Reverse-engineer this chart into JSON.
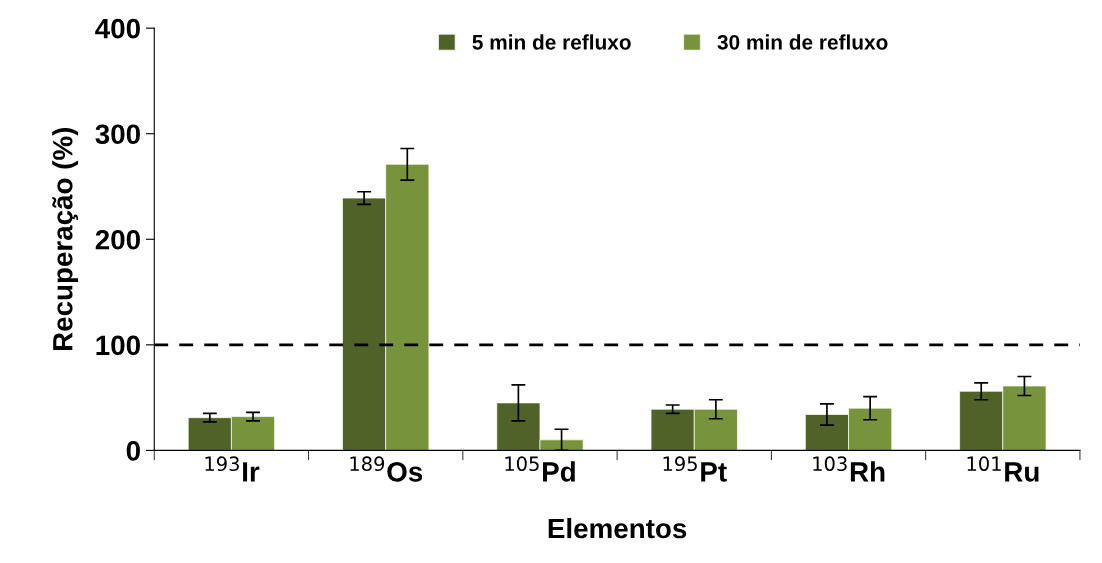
{
  "chart_data": {
    "type": "bar",
    "xlabel": "Elementos",
    "ylabel": "Recuperação (%)",
    "categories": [
      "$^{193}$Ir",
      "$^{189}$Os",
      "$^{105}$Pd",
      "$^{195}$Pt",
      "$^{103}$Rh",
      "$^{101}$Ru"
    ],
    "series": [
      {
        "name": "5 min de refluxo",
        "color": "#4f6228",
        "values": [
          31,
          239,
          45,
          39,
          34,
          56
        ],
        "errors": [
          4,
          6,
          17,
          4,
          10,
          8
        ]
      },
      {
        "name": "30 min de refluxo",
        "color": "#77933c",
        "values": [
          32,
          271,
          10,
          39,
          40,
          61
        ],
        "errors": [
          4,
          15,
          10,
          9,
          11,
          9
        ]
      }
    ],
    "ylim": [
      0,
      400
    ],
    "yticks": [
      0,
      100,
      200,
      300,
      400
    ],
    "ref_lines": [
      {
        "axis": "y",
        "value": 100,
        "color": "#000000",
        "line_style": "dashed"
      }
    ],
    "grid": false,
    "legend": "top"
  }
}
